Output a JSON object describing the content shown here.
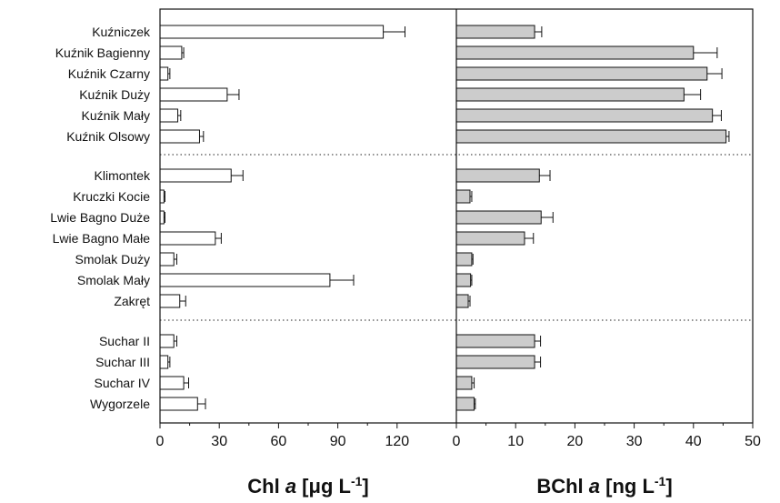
{
  "chart_data": {
    "type": "bar",
    "orientation": "horizontal",
    "categories": [
      "Kuźniczek",
      "Kuźnik Bagienny",
      "Kuźnik Czarny",
      "Kuźnik Duży",
      "Kuźnik Mały",
      "Kuźnik Olsowy",
      "Klimontek",
      "Kruczki Kocie",
      "Lwie Bagno Duże",
      "Lwie Bagno Małe",
      "Smolak Duży",
      "Smolak Mały",
      "Zakręt",
      "Suchar II",
      "Suchar III",
      "Suchar IV",
      "Wygorzele"
    ],
    "groups": [
      [
        0,
        5
      ],
      [
        6,
        12
      ],
      [
        13,
        16
      ]
    ],
    "panels": [
      {
        "name": "Chl a",
        "xlabel_main": "Chl ",
        "xlabel_italic": "a",
        "xlabel_unit": " [μg L",
        "xlabel_sup": "-1",
        "xlabel_end": "]",
        "xlim": [
          0,
          150
        ],
        "xticks": [
          0,
          30,
          60,
          90,
          120
        ],
        "bar_color": "#ffffff",
        "values": [
          113,
          11,
          4,
          34,
          9,
          20,
          36,
          2,
          2,
          28,
          7,
          86,
          10,
          7,
          4,
          12,
          19
        ],
        "errors": [
          11,
          1,
          1,
          6,
          1.5,
          2,
          6,
          0.5,
          0.5,
          3,
          1.5,
          12,
          3,
          1.5,
          1,
          2.5,
          4
        ]
      },
      {
        "name": "BChl a",
        "xlabel_main": "BChl ",
        "xlabel_italic": "a",
        "xlabel_unit": " [ng L",
        "xlabel_sup": "-1",
        "xlabel_end": "]",
        "xlim": [
          0,
          50
        ],
        "xticks": [
          0,
          10,
          20,
          30,
          40,
          50
        ],
        "bar_color": "#cccccc",
        "values": [
          13.2,
          40,
          42.3,
          38.4,
          43.2,
          45.5,
          14,
          2.3,
          14.3,
          11.5,
          2.6,
          2.4,
          2,
          13.2,
          13.2,
          2.6,
          3
        ],
        "errors": [
          1.2,
          4,
          2.5,
          2.8,
          1.5,
          0.5,
          1.8,
          0.3,
          2,
          1.5,
          0.2,
          0.2,
          0.3,
          1,
          1,
          0.4,
          0.2
        ]
      }
    ],
    "legend": "none",
    "grid": false
  }
}
